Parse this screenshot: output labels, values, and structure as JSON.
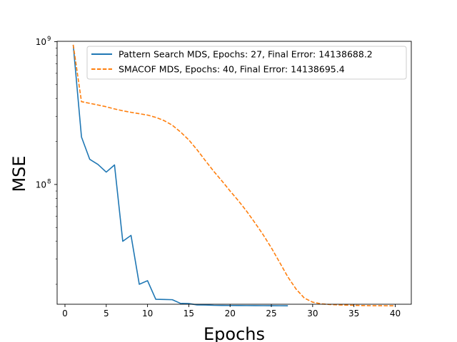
{
  "chart_data": {
    "type": "line",
    "title": "",
    "xlabel": "Epochs",
    "ylabel": "MSE",
    "xlim": [
      -0.95,
      41.95
    ],
    "ylim": [
      14500000,
      1005000000
    ],
    "yscale": "log",
    "grid": false,
    "legend_position": "top-right",
    "xticks": [
      0,
      5,
      10,
      15,
      20,
      25,
      30,
      35,
      40
    ],
    "yticks": [
      {
        "value": 100000000,
        "base": "10",
        "exp": "8"
      },
      {
        "value": 1000000000,
        "base": "10",
        "exp": "9"
      }
    ],
    "series": [
      {
        "name": "Pattern Search MDS, Epochs: 27, Final Error: 14138688.2",
        "color": "#1f77b4",
        "style": "solid",
        "x": [
          1,
          2,
          3,
          4,
          5,
          6,
          7,
          8,
          9,
          10,
          11,
          12,
          13,
          14,
          15,
          16,
          17,
          18,
          19,
          20,
          21,
          22,
          23,
          24,
          25,
          26,
          27
        ],
        "y": [
          950000000,
          215000000,
          150000000,
          138000000,
          122000000,
          137000000,
          40000000,
          44000000,
          20000000,
          21200000,
          15700000,
          15650000,
          15600000,
          14700000,
          14650000,
          14350000,
          14320000,
          14250000,
          14230000,
          14210000,
          14200000,
          14190000,
          14180000,
          14170000,
          14160000,
          14150000,
          14138688.2
        ]
      },
      {
        "name": "SMACOF MDS, Epochs: 40, Final Error: 14138695.4",
        "color": "#ff7f0e",
        "style": "dashed",
        "x": [
          1,
          2,
          3,
          4,
          5,
          6,
          7,
          8,
          9,
          10,
          11,
          12,
          13,
          14,
          15,
          16,
          17,
          18,
          19,
          20,
          21,
          22,
          23,
          24,
          25,
          26,
          27,
          28,
          29,
          30,
          31,
          32,
          33,
          34,
          35,
          36,
          37,
          38,
          39,
          40
        ],
        "y": [
          950000000,
          380000000,
          370000000,
          360000000,
          350000000,
          338000000,
          328000000,
          320000000,
          313000000,
          306000000,
          295000000,
          280000000,
          260000000,
          233000000,
          205000000,
          175000000,
          147000000,
          124000000,
          106000000,
          90000000,
          77000000,
          65000000,
          54000000,
          44500000,
          36000000,
          28500000,
          22500000,
          18500000,
          16000000,
          15000000,
          14600000,
          14450000,
          14350000,
          14300000,
          14250000,
          14200000,
          14170000,
          14160000,
          14150000,
          14138695.4
        ]
      }
    ]
  }
}
